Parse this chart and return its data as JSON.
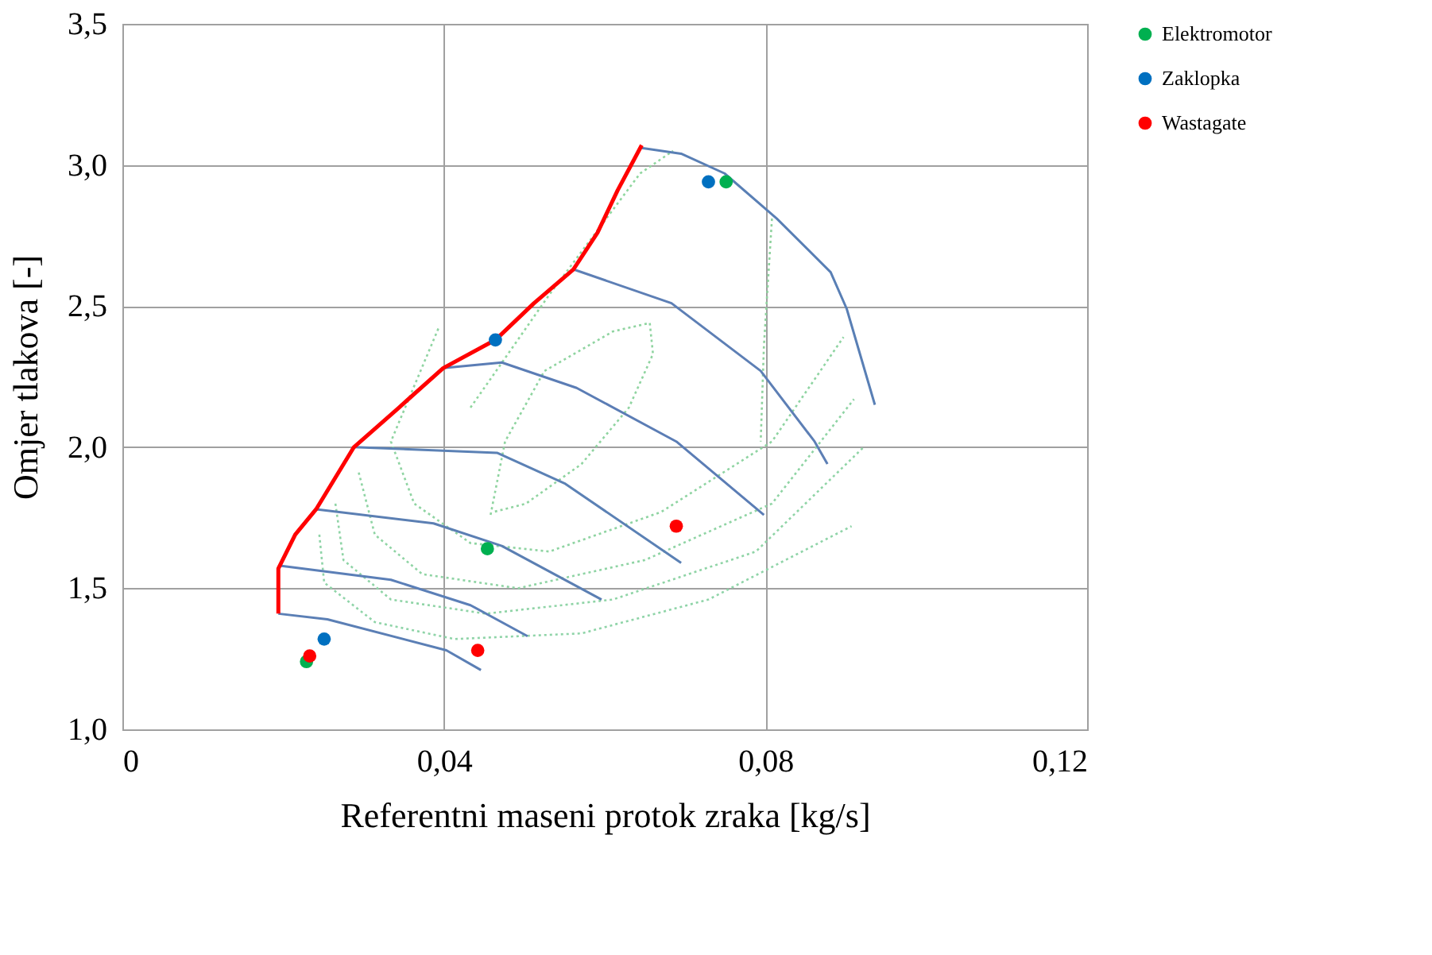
{
  "chart_data": {
    "type": "line",
    "xlabel": "Referentni maseni protok zraka [kg/s]",
    "ylabel": "Omjer tlakova [-]",
    "xlim": [
      0,
      0.12
    ],
    "xticks": [
      {
        "value": 0,
        "label": "0"
      },
      {
        "value": 0.04,
        "label": "0,04"
      },
      {
        "value": 0.08,
        "label": "0,08"
      },
      {
        "value": 0.12,
        "label": "0,12"
      }
    ],
    "ylim": [
      1.0,
      3.5
    ],
    "yticks": [
      {
        "value": 1.0,
        "label": "1,0"
      },
      {
        "value": 1.5,
        "label": "1,5"
      },
      {
        "value": 2.0,
        "label": "2,0"
      },
      {
        "value": 2.5,
        "label": "2,5"
      },
      {
        "value": 3.0,
        "label": "3,0"
      },
      {
        "value": 3.5,
        "label": "3,5"
      }
    ],
    "grid": true,
    "legend": "right",
    "series": [
      {
        "color": "#8fd4a0",
        "line_style": "dotted",
        "x": [
          0.0458,
          0.0476,
          0.0525,
          0.061,
          0.0656,
          0.066,
          0.063,
          0.0571,
          0.0502,
          0.0461
        ],
        "values": [
          1.76,
          2.02,
          2.27,
          2.41,
          2.44,
          2.33,
          2.14,
          1.94,
          1.8,
          1.77
        ]
      },
      {
        "color": "#8fd4a2",
        "line_style": "dotted",
        "x": [
          0.0393,
          0.0334,
          0.0363,
          0.0433,
          0.0531,
          0.067,
          0.0808,
          0.0897
        ],
        "values": [
          2.42,
          2.02,
          1.8,
          1.66,
          1.63,
          1.77,
          2.02,
          2.39
        ]
      },
      {
        "color": "#8fd4a4",
        "line_style": "dotted",
        "x": [
          0.0294,
          0.0314,
          0.0373,
          0.0492,
          0.065,
          0.0808,
          0.091
        ],
        "values": [
          1.91,
          1.69,
          1.55,
          1.5,
          1.6,
          1.8,
          2.17
        ]
      },
      {
        "color": "#8fd4a6",
        "line_style": "dotted",
        "x": [
          0.0265,
          0.0275,
          0.0334,
          0.0452,
          0.061,
          0.0788,
          0.0922
        ],
        "values": [
          1.8,
          1.6,
          1.46,
          1.41,
          1.46,
          1.63,
          2.0
        ]
      },
      {
        "color": "#8fd4a8",
        "line_style": "dotted",
        "x": [
          0.0245,
          0.0251,
          0.0314,
          0.0413,
          0.0571,
          0.0729,
          0.0907
        ],
        "values": [
          1.69,
          1.52,
          1.38,
          1.32,
          1.34,
          1.46,
          1.72
        ]
      },
      {
        "color": "#8fd69e",
        "line_style": "dotted",
        "x": [
          0.0433,
          0.0531,
          0.0644,
          0.0685
        ],
        "values": [
          2.14,
          2.54,
          2.97,
          3.05
        ]
      },
      {
        "color": "#8fd29e",
        "line_style": "dotted",
        "x": [
          0.0808,
          0.0798,
          0.0794
        ],
        "values": [
          2.81,
          2.36,
          2.02
        ]
      },
      {
        "color": "#5b7fb5",
        "line_style": "solid",
        "x": [
          0.0194,
          0.0255,
          0.0403,
          0.0446
        ],
        "values": [
          1.41,
          1.39,
          1.28,
          1.21
        ]
      },
      {
        "color": "#5b7fb7",
        "line_style": "solid",
        "x": [
          0.0196,
          0.0334,
          0.0433,
          0.0504
        ],
        "values": [
          1.58,
          1.53,
          1.44,
          1.33
        ]
      },
      {
        "color": "#5b7fb3",
        "line_style": "solid",
        "x": [
          0.0241,
          0.0387,
          0.0472,
          0.0596
        ],
        "values": [
          1.78,
          1.73,
          1.65,
          1.46
        ]
      },
      {
        "color": "#5b81b5",
        "line_style": "solid",
        "x": [
          0.0288,
          0.0466,
          0.0551,
          0.0695
        ],
        "values": [
          2.0,
          1.98,
          1.87,
          1.59
        ]
      },
      {
        "color": "#5b7db5",
        "line_style": "solid",
        "x": [
          0.0399,
          0.0472,
          0.0565,
          0.0689,
          0.0798
        ],
        "values": [
          2.28,
          2.3,
          2.21,
          2.02,
          1.76
        ]
      },
      {
        "color": "#5d7fb5",
        "line_style": "solid",
        "x": [
          0.0561,
          0.0683,
          0.0794,
          0.0861,
          0.0877
        ],
        "values": [
          2.63,
          2.51,
          2.27,
          2.02,
          1.94
        ]
      },
      {
        "color": "#597fb5",
        "line_style": "solid",
        "x": [
          0.0646,
          0.0695,
          0.0749,
          0.0814,
          0.0881,
          0.0901,
          0.0936
        ],
        "values": [
          3.06,
          3.04,
          2.97,
          2.81,
          2.62,
          2.49,
          2.15
        ]
      },
      {
        "color": "#ff0000",
        "line_style": "solid",
        "x": [
          0.0194,
          0.0194,
          0.0215,
          0.0241,
          0.0288,
          0.0344,
          0.0399,
          0.0464,
          0.0512,
          0.0561,
          0.0591,
          0.0616,
          0.0646
        ],
        "values": [
          1.41,
          1.57,
          1.69,
          1.78,
          2.0,
          2.14,
          2.28,
          2.38,
          2.51,
          2.63,
          2.76,
          2.91,
          3.07
        ]
      },
      {
        "type": "scatter",
        "name": "Elektromotor",
        "color": "#00b050",
        "marker": "circle",
        "x": [
          0.0751,
          0.0454,
          0.0229
        ],
        "values": [
          2.94,
          1.64,
          1.24
        ]
      },
      {
        "type": "scatter",
        "name": "Zaklopka",
        "color": "#0070c0",
        "marker": "circle",
        "x": [
          0.0729,
          0.0464,
          0.0251
        ],
        "values": [
          2.94,
          2.38,
          1.32
        ]
      },
      {
        "type": "scatter",
        "name": "Wastagate",
        "color": "#ff0000",
        "marker": "circle",
        "x": [
          0.0233,
          0.0442,
          0.0689
        ],
        "values": [
          1.26,
          1.28,
          1.72
        ]
      }
    ]
  }
}
